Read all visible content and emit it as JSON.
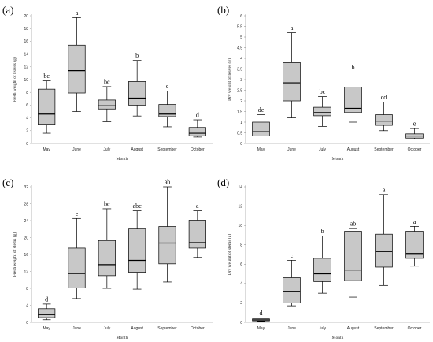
{
  "chart_data": [
    {
      "type": "box",
      "panel_label": "(a)",
      "xlabel": "Month",
      "ylabel": "Fresh weight of leaves (g)",
      "ylim": [
        0,
        20
      ],
      "yticks": [
        0,
        2,
        4,
        6,
        8,
        10,
        12,
        14,
        16,
        18,
        20
      ],
      "categories": [
        "May",
        "June",
        "July",
        "August",
        "September",
        "October"
      ],
      "boxes": [
        {
          "min": 1.6,
          "q1": 3.0,
          "median": 4.6,
          "q3": 8.5,
          "max": 9.8,
          "letter": "bc"
        },
        {
          "min": 5.0,
          "q1": 7.9,
          "median": 11.4,
          "q3": 15.4,
          "max": 19.7,
          "letter": "a"
        },
        {
          "min": 3.4,
          "q1": 5.4,
          "median": 5.9,
          "q3": 6.8,
          "max": 8.9,
          "letter": "bc"
        },
        {
          "min": 4.3,
          "q1": 6.0,
          "median": 7.1,
          "q3": 9.7,
          "max": 13.0,
          "letter": "b"
        },
        {
          "min": 2.6,
          "q1": 4.2,
          "median": 4.6,
          "q3": 6.1,
          "max": 8.2,
          "letter": "c"
        },
        {
          "min": 1.0,
          "q1": 1.2,
          "median": 1.6,
          "q3": 2.5,
          "max": 3.7,
          "letter": "d"
        }
      ]
    },
    {
      "type": "box",
      "panel_label": "(b)",
      "xlabel": "Month",
      "ylabel": "Dry weight of leaves (g)",
      "ylim": [
        0,
        6
      ],
      "yticks": [
        0,
        0.5,
        1,
        1.5,
        2,
        2.5,
        3,
        3.5,
        4,
        4.5,
        5,
        5.5,
        6
      ],
      "categories": [
        "May",
        "June",
        "July",
        "August",
        "September",
        "October"
      ],
      "boxes": [
        {
          "min": 0.2,
          "q1": 0.35,
          "median": 0.55,
          "q3": 1.0,
          "max": 1.35,
          "letter": "de"
        },
        {
          "min": 1.2,
          "q1": 2.0,
          "median": 2.85,
          "q3": 3.8,
          "max": 5.2,
          "letter": "a"
        },
        {
          "min": 0.8,
          "q1": 1.3,
          "median": 1.45,
          "q3": 1.7,
          "max": 2.2,
          "letter": "bc"
        },
        {
          "min": 1.0,
          "q1": 1.45,
          "median": 1.65,
          "q3": 2.65,
          "max": 3.35,
          "letter": "b"
        },
        {
          "min": 0.6,
          "q1": 0.85,
          "median": 1.05,
          "q3": 1.35,
          "max": 1.95,
          "letter": "cd"
        },
        {
          "min": 0.2,
          "q1": 0.25,
          "median": 0.35,
          "q3": 0.45,
          "max": 0.7,
          "letter": "e"
        }
      ]
    },
    {
      "type": "box",
      "panel_label": "(c)",
      "xlabel": "Month",
      "ylabel": "Fresh weight of stems (g)",
      "ylim": [
        0,
        32
      ],
      "yticks": [
        0,
        4,
        8,
        12,
        16,
        20,
        24,
        28,
        32
      ],
      "categories": [
        "May",
        "June",
        "July",
        "August",
        "September",
        "October"
      ],
      "boxes": [
        {
          "min": 0.6,
          "q1": 1.1,
          "median": 1.8,
          "q3": 3.2,
          "max": 4.3,
          "letter": "d"
        },
        {
          "min": 5.6,
          "q1": 8.1,
          "median": 11.5,
          "q3": 17.5,
          "max": 24.5,
          "letter": "c"
        },
        {
          "min": 8.0,
          "q1": 11.0,
          "median": 13.6,
          "q3": 19.3,
          "max": 26.8,
          "letter": "bc"
        },
        {
          "min": 7.8,
          "q1": 11.8,
          "median": 14.6,
          "q3": 22.2,
          "max": 26.3,
          "letter": "abc"
        },
        {
          "min": 9.5,
          "q1": 13.8,
          "median": 18.7,
          "q3": 22.6,
          "max": 32.0,
          "letter": "ab"
        },
        {
          "min": 15.3,
          "q1": 17.5,
          "median": 18.8,
          "q3": 24.1,
          "max": 26.3,
          "letter": "a"
        }
      ]
    },
    {
      "type": "box",
      "panel_label": "(d)",
      "xlabel": "Month",
      "ylabel": "Dry weight of stems (g)",
      "ylim": [
        0,
        14
      ],
      "yticks": [
        0,
        2,
        4,
        6,
        8,
        10,
        12,
        14
      ],
      "categories": [
        "May",
        "June",
        "July",
        "August",
        "September",
        "October"
      ],
      "boxes": [
        {
          "min": 0.1,
          "q1": 0.15,
          "median": 0.25,
          "q3": 0.35,
          "max": 0.45,
          "letter": "d"
        },
        {
          "min": 1.7,
          "q1": 2.0,
          "median": 3.2,
          "q3": 4.6,
          "max": 6.4,
          "letter": "c"
        },
        {
          "min": 3.0,
          "q1": 4.2,
          "median": 5.0,
          "q3": 6.6,
          "max": 8.9,
          "letter": "b"
        },
        {
          "min": 2.6,
          "q1": 4.3,
          "median": 5.4,
          "q3": 9.4,
          "max": 9.7,
          "letter": "ab"
        },
        {
          "min": 3.8,
          "q1": 5.7,
          "median": 7.3,
          "q3": 9.1,
          "max": 13.2,
          "letter": "a"
        },
        {
          "min": 5.8,
          "q1": 6.6,
          "median": 7.1,
          "q3": 9.4,
          "max": 9.9,
          "letter": "a"
        }
      ]
    }
  ],
  "colors": {
    "box_fill": "#c8c8c8",
    "line": "#000000",
    "axis": "#888888"
  }
}
